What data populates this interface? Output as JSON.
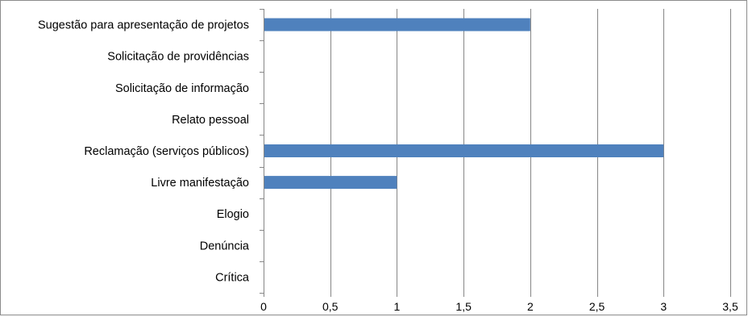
{
  "chart_data": {
    "type": "bar",
    "orientation": "horizontal",
    "categories": [
      "Sugestão para apresentação de projetos",
      "Solicitação de providências",
      "Solicitação de informação",
      "Relato pessoal",
      "Reclamação (serviços públicos)",
      "Livre manifestação",
      "Elogio",
      "Denúncia",
      "Crítica"
    ],
    "values": [
      2,
      0,
      0,
      0,
      3,
      1,
      0,
      0,
      0
    ],
    "xlim": [
      0,
      3.5
    ],
    "xticks": [
      0,
      0.5,
      1,
      1.5,
      2,
      2.5,
      3,
      3.5
    ],
    "xtick_labels": [
      "0",
      "0,5",
      "1",
      "1,5",
      "2",
      "2,5",
      "3",
      "3,5"
    ],
    "grid": "vertical major gridlines",
    "legend": "none",
    "bar_color": "#4f81bd",
    "title": "",
    "xlabel": "",
    "ylabel": ""
  }
}
